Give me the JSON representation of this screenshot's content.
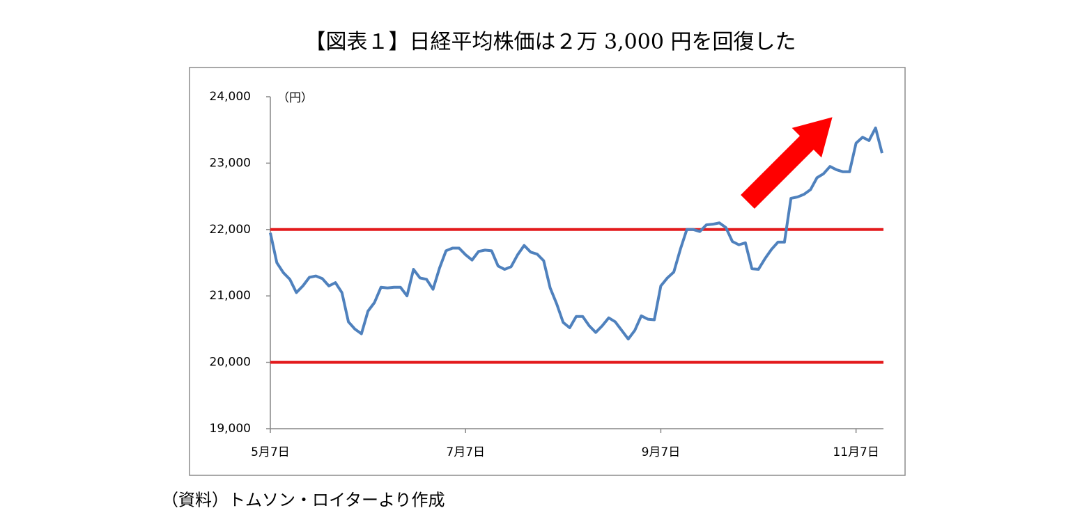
{
  "chart_data": {
    "type": "line",
    "title": "【図表１】日経平均株価は２万 3,000 円を回復した",
    "y_unit_label": "（円）",
    "source": "（資料）トムソン・ロイターより作成",
    "categories": [
      "5月7日",
      null,
      null,
      null,
      null,
      null,
      null,
      null,
      null,
      null,
      null,
      null,
      null,
      null,
      null,
      null,
      null,
      null,
      null,
      null,
      null,
      null,
      null,
      null,
      null,
      null,
      null,
      null,
      null,
      null,
      "7月7日",
      null,
      null,
      null,
      null,
      null,
      null,
      null,
      null,
      null,
      null,
      null,
      null,
      null,
      null,
      null,
      null,
      null,
      null,
      null,
      null,
      null,
      null,
      null,
      null,
      null,
      null,
      null,
      null,
      null,
      "9月7日",
      null,
      null,
      null,
      null,
      null,
      null,
      null,
      null,
      null,
      null,
      null,
      null,
      null,
      null,
      null,
      null,
      null,
      null,
      null,
      null,
      null,
      null,
      null,
      null,
      null,
      null,
      null,
      null,
      null,
      "11月7日",
      null,
      null,
      null,
      null
    ],
    "series": [
      {
        "name": "日経平均株価",
        "color": "#4f81bd",
        "values": [
          21950,
          21500,
          21350,
          21250,
          21050,
          21150,
          21280,
          21300,
          21260,
          21150,
          21200,
          21050,
          20610,
          20500,
          20430,
          20770,
          20900,
          21130,
          21120,
          21130,
          21130,
          21000,
          21400,
          21270,
          21250,
          21100,
          21420,
          21680,
          21720,
          21720,
          21620,
          21540,
          21670,
          21690,
          21680,
          21450,
          21400,
          21440,
          21620,
          21760,
          21660,
          21630,
          21530,
          21120,
          20880,
          20600,
          20520,
          20690,
          20690,
          20550,
          20450,
          20550,
          20670,
          20610,
          20480,
          20350,
          20480,
          20700,
          20650,
          20640,
          21150,
          21270,
          21360,
          21700,
          22000,
          22000,
          21970,
          22070,
          22080,
          22100,
          22030,
          21820,
          21770,
          21800,
          21410,
          21400,
          21560,
          21700,
          21810,
          21810,
          22470,
          22490,
          22530,
          22600,
          22780,
          22840,
          22950,
          22900,
          22870,
          22870,
          23300,
          23390,
          23340,
          23530,
          23150
        ]
      }
    ],
    "reference_lines": [
      {
        "value": 22000,
        "color": "#e31a1c"
      },
      {
        "value": 20000,
        "color": "#e31a1c"
      }
    ],
    "ylim": [
      19000,
      24000
    ],
    "yticks": [
      {
        "value": 19000,
        "label": "19,000"
      },
      {
        "value": 20000,
        "label": "20,000"
      },
      {
        "value": 21000,
        "label": "21,000"
      },
      {
        "value": 22000,
        "label": "22,000"
      },
      {
        "value": 23000,
        "label": "23,000"
      },
      {
        "value": 24000,
        "label": "24,000"
      }
    ],
    "grid": false
  }
}
